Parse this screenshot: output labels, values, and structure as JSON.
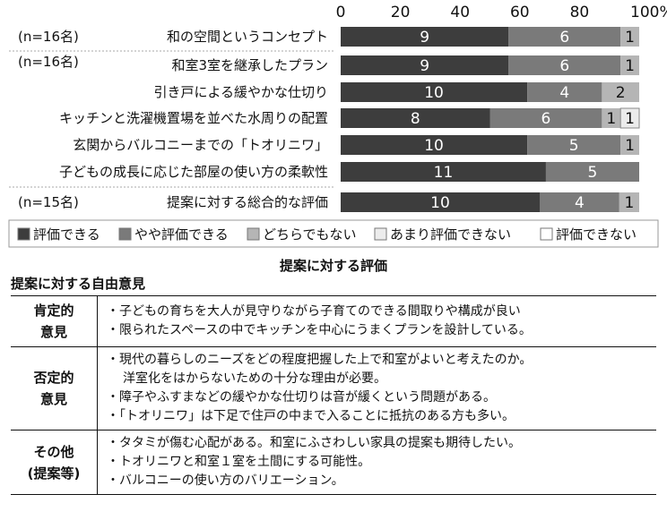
{
  "chart_data": {
    "type": "bar",
    "orientation": "horizontal",
    "stacked": true,
    "xlim": [
      0,
      100
    ],
    "x_ticks": [
      "0",
      "20",
      "40",
      "60",
      "80",
      "100%"
    ],
    "grid": false,
    "legend_position": "bottom",
    "rows": [
      {
        "group": "(n=16名)",
        "label": "和の空間というコンセプト",
        "values": [
          9,
          6,
          1,
          0,
          0
        ]
      },
      {
        "group": "(n=16名)",
        "label": "和室3室を継承したプラン",
        "values": [
          9,
          6,
          1,
          0,
          0
        ]
      },
      {
        "group": "",
        "label": "引き戸による緩やかな仕切り",
        "values": [
          10,
          4,
          2,
          0,
          0
        ]
      },
      {
        "group": "",
        "label": "キッチンと洗濯機置場を並べた水周りの配置",
        "values": [
          8,
          6,
          1,
          1,
          0
        ]
      },
      {
        "group": "",
        "label": "玄関からバルコニーまでの「トオリニワ」",
        "values": [
          10,
          5,
          1,
          0,
          0
        ]
      },
      {
        "group": "",
        "label": "子どもの成長に応じた部屋の使い方の柔軟性",
        "values": [
          11,
          5,
          0,
          0,
          0
        ]
      },
      {
        "group": "(n=15名)",
        "label": "提案に対する総合的な評価",
        "values": [
          10,
          4,
          1,
          0,
          0
        ]
      }
    ],
    "series": [
      {
        "name": "評価できる",
        "color": "#3d3d3d",
        "text_color": "#ffffff"
      },
      {
        "name": "やや評価できる",
        "color": "#7a7a7a",
        "text_color": "#ffffff"
      },
      {
        "name": "どちらでもない",
        "color": "#b5b5b5",
        "text_color": "#111111"
      },
      {
        "name": "あまり評価できない",
        "color": "#ececec",
        "text_color": "#111111"
      },
      {
        "name": "評価できない",
        "color": "#ffffff",
        "text_color": "#111111"
      }
    ],
    "title": "提案に対する評価"
  },
  "opinions": {
    "title": "提案に対する自由意見",
    "rows": [
      {
        "category_lines": [
          "肯定的",
          "意見"
        ],
        "lines": [
          {
            "text": "・子どもの育ちを大人が見守りながら子育てのできる間取りや構成が良い",
            "indent": false
          },
          {
            "text": "・限られたスペースの中でキッチンを中心にうまくプランを設計している。",
            "indent": false
          }
        ]
      },
      {
        "category_lines": [
          "否定的",
          "意見"
        ],
        "lines": [
          {
            "text": "・現代の暮らしのニーズをどの程度把握した上で和室がよいと考えたのか。",
            "indent": false
          },
          {
            "text": "洋室化をはからないための十分な理由が必要。",
            "indent": true
          },
          {
            "text": "・障子やふすまなどの緩やかな仕切りは音が緩くという問題がある。",
            "indent": false
          },
          {
            "text": "・「トオリニワ」は下足で住戸の中まで入ることに抵抗のある方も多い。",
            "indent": false
          }
        ]
      },
      {
        "category_lines": [
          "その他",
          "(提案等)"
        ],
        "lines": [
          {
            "text": "・タタミが傷む心配がある。和室にふさわしい家具の提案も期待したい。",
            "indent": false
          },
          {
            "text": "・トオリニワと和室１室を土間にする可能性。",
            "indent": false
          },
          {
            "text": "・バルコニーの使い方のバリエーション。",
            "indent": false
          }
        ]
      }
    ]
  }
}
